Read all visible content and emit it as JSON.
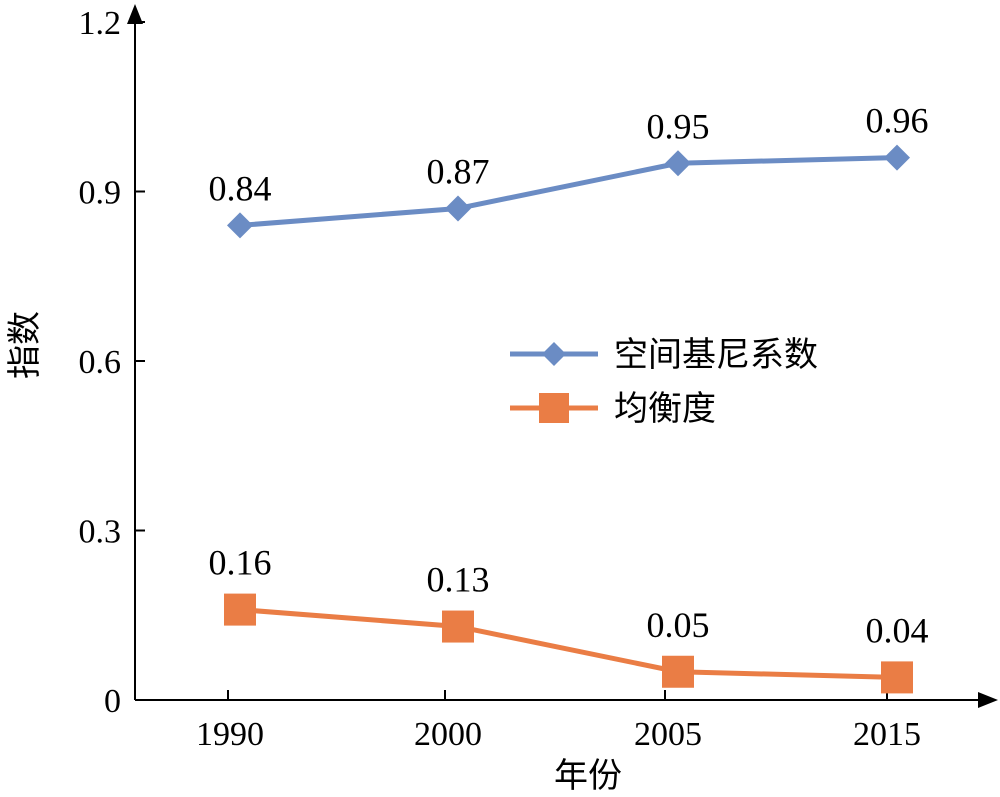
{
  "chart_data": {
    "type": "line",
    "categories": [
      "1990",
      "2000",
      "2005",
      "2015"
    ],
    "xlabel": "年份",
    "ylabel": "指数",
    "ylim": [
      0,
      1.2
    ],
    "yticks": [
      "0",
      "0.3",
      "0.6",
      "0.9",
      "1.2"
    ],
    "ytick_values": [
      0,
      0.3,
      0.6,
      0.9,
      1.2
    ],
    "grid": false,
    "legend": "center-right",
    "series": [
      {
        "name": "空间基尼系数",
        "values": [
          0.84,
          0.87,
          0.95,
          0.96
        ],
        "labels": [
          "0.84",
          "0.87",
          "0.95",
          "0.96"
        ],
        "color": "#6b8cc4",
        "marker": "diamond"
      },
      {
        "name": "均衡度",
        "values": [
          0.16,
          0.13,
          0.05,
          0.04
        ],
        "labels": [
          "0.16",
          "0.13",
          "0.05",
          "0.04"
        ],
        "color": "#ea7d45",
        "marker": "square"
      }
    ]
  }
}
